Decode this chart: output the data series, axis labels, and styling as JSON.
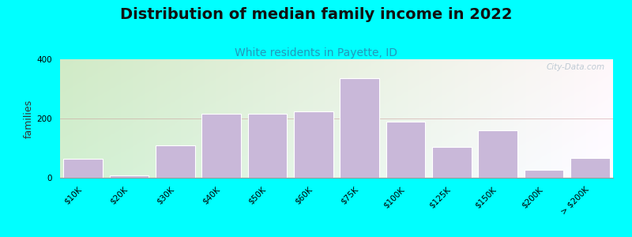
{
  "title": "Distribution of median family income in 2022",
  "subtitle": "White residents in Payette, ID",
  "ylabel": "families",
  "background_outer": "#00FFFF",
  "bar_color": "#c9b8d9",
  "bar_edge_color": "#ffffff",
  "categories": [
    "$10K",
    "$20K",
    "$30K",
    "$40K",
    "$50K",
    "$60K",
    "$75K",
    "$100K",
    "$125K",
    "$150K",
    "$200K",
    "> $200K"
  ],
  "values": [
    65,
    8,
    110,
    215,
    215,
    225,
    335,
    190,
    105,
    160,
    28,
    68
  ],
  "ylim": [
    0,
    400
  ],
  "yticks": [
    0,
    200,
    400
  ],
  "title_fontsize": 14,
  "subtitle_fontsize": 10,
  "ylabel_fontsize": 9,
  "tick_fontsize": 7.5,
  "watermark_text": "City-Data.com",
  "bg_color_topleft": "#cde8b8",
  "bg_color_topright": "#e8f4f0",
  "bg_color_bottomleft": "#daeec8",
  "bg_color_bottomright": "#f0f4f8"
}
